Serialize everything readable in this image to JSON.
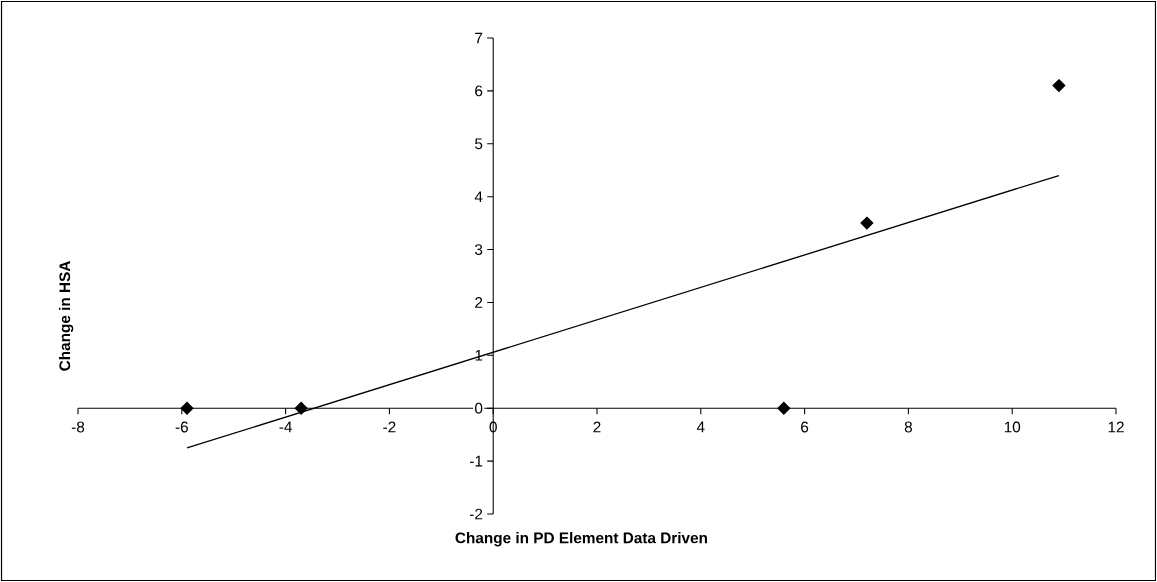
{
  "chart_data": {
    "type": "scatter",
    "xlabel": "Change in PD Element Data Driven",
    "ylabel": "Change in HSA",
    "series": [
      {
        "color": "#000000",
        "marker": "diamond",
        "x": [
          -5.9,
          -3.7,
          5.6,
          7.2,
          10.9
        ],
        "values": [
          0,
          0,
          0,
          3.5,
          6.1
        ]
      },
      {
        "type": "line",
        "color": "#000000",
        "marker": "none",
        "x": [
          -5.9,
          10.9
        ],
        "values": [
          -0.75,
          4.4
        ]
      }
    ],
    "xlim": [
      -8,
      12
    ],
    "ylim": [
      -2,
      7
    ],
    "xticks": [
      -8,
      -6,
      -4,
      -2,
      0,
      2,
      4,
      6,
      8,
      10,
      12
    ],
    "yticks": [
      -2,
      -1,
      0,
      1,
      2,
      3,
      4,
      5,
      6,
      7
    ]
  }
}
